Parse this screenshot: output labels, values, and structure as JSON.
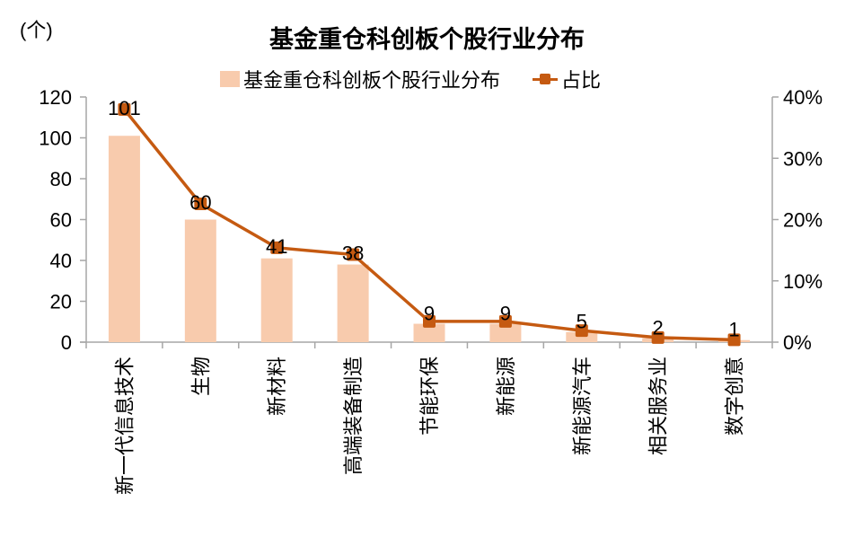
{
  "unit_label": "(个)",
  "title": "基金重仓科创板个股行业分布",
  "legend": {
    "bar_label": "基金重仓科创板个股行业分布",
    "line_label": "占比"
  },
  "colors": {
    "bar": "#F8CBAD",
    "line": "#C55A11",
    "axis": "#A6A6A6"
  },
  "chart_data": {
    "type": "bar",
    "title": "基金重仓科创板个股行业分布",
    "xlabel": "",
    "ylabel": "(个)",
    "y2label": "",
    "categories": [
      "新一代信息技术",
      "生物",
      "新材料",
      "高端装备制造",
      "节能环保",
      "新能源",
      "新能源汽车",
      "相关服务业",
      "数字创意"
    ],
    "series": [
      {
        "name": "基金重仓科创板个股行业分布",
        "type": "bar",
        "axis": "left",
        "values": [
          101,
          60,
          41,
          38,
          9,
          9,
          5,
          2,
          1
        ]
      },
      {
        "name": "占比",
        "type": "line",
        "axis": "right",
        "values": [
          0.3797,
          0.2256,
          0.1541,
          0.1429,
          0.0338,
          0.0338,
          0.0188,
          0.0075,
          0.0038
        ]
      }
    ],
    "data_labels": [
      "101",
      "60",
      "41",
      "38",
      "9",
      "9",
      "5",
      "2",
      "1"
    ],
    "ylim": [
      0,
      120
    ],
    "y_ticks": [
      "0",
      "20",
      "40",
      "60",
      "80",
      "100",
      "120"
    ],
    "y2lim": [
      0,
      0.4
    ],
    "y2_ticks": [
      "0%",
      "10%",
      "20%",
      "30%",
      "40%"
    ],
    "grid": false,
    "legend_position": "top"
  }
}
